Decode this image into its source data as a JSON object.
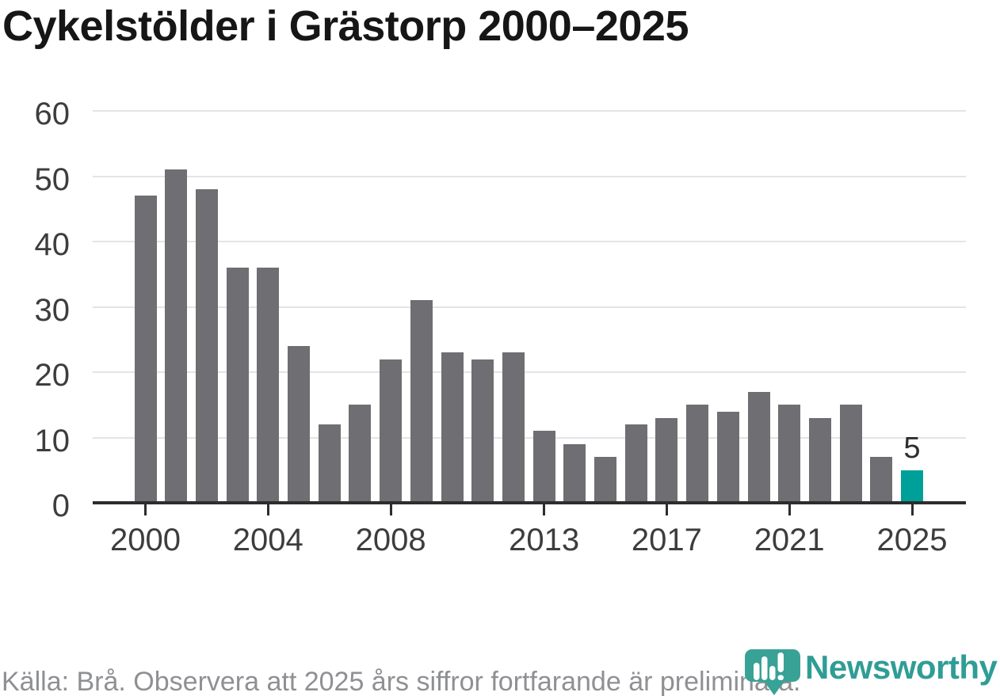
{
  "title": "Cykelstölder i Grästorp 2000–2025",
  "footer": {
    "source_note": "Källa: Brå. Observera att 2025 års siffror fortfarande är preliminära."
  },
  "branding": {
    "wordmark": "Newsworthy",
    "icon": "newsworthy-pin-barchart-icon",
    "wordmark_color": "#2f9d95",
    "icon_color": "#38a296"
  },
  "chart_data": {
    "type": "bar",
    "title": "Cykelstölder i Grästorp 2000–2025",
    "categories": [
      2000,
      2001,
      2002,
      2003,
      2004,
      2005,
      2006,
      2007,
      2008,
      2009,
      2010,
      2011,
      2012,
      2013,
      2014,
      2015,
      2016,
      2017,
      2018,
      2019,
      2020,
      2021,
      2022,
      2023,
      2024,
      2025
    ],
    "values": [
      47,
      51,
      48,
      36,
      36,
      24,
      12,
      15,
      22,
      31,
      23,
      22,
      23,
      11,
      9,
      7,
      12,
      13,
      15,
      14,
      17,
      15,
      13,
      15,
      7,
      5
    ],
    "xlabel": "",
    "ylabel": "",
    "ylim": [
      0,
      60
    ],
    "y_ticks": [
      0,
      10,
      20,
      30,
      40,
      50,
      60
    ],
    "x_tick_years": [
      2000,
      2004,
      2008,
      2013,
      2017,
      2021,
      2025
    ],
    "grid": "horizontal",
    "legend": "none",
    "bar_color": "#6e6e73",
    "highlight_year": 2025,
    "highlight_color": "#00a09a",
    "annotation": {
      "year": 2025,
      "text": "5"
    },
    "colors": {
      "gridline": "#e4e4e6",
      "axis_line": "#2d2d2d",
      "axis_label": "#3d3d3d",
      "value_label": "#2e2e2e"
    }
  }
}
